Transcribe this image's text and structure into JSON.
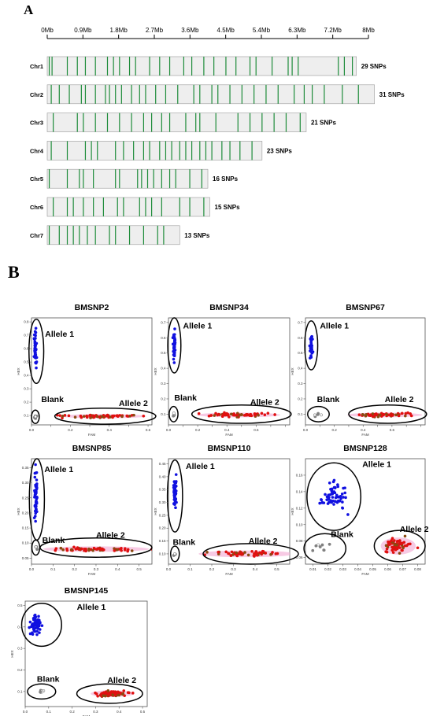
{
  "panel_a": {
    "label": "A",
    "axis_ticks": [
      "0Mb",
      "0.9Mb",
      "1.8Mb",
      "2.7Mb",
      "3.6Mb",
      "4.5Mb",
      "5.4Mb",
      "6.3Mb",
      "7.2Mb",
      "8Mb"
    ],
    "snp_color": "#1e8c3a",
    "bar_color": "#eeeeee"
  },
  "panel_b": {
    "label": "B",
    "colors": {
      "allele1": "#1010e0",
      "allele2": "#e01010",
      "het": "#8a4a10",
      "blank": "#808080",
      "halo": "#f4b4d8"
    }
  },
  "chart_data": [
    {
      "type": "bar",
      "title": "",
      "xlabel": "",
      "xlim_mb": [
        0,
        8
      ],
      "chromosomes": [
        {
          "name": "Chr1",
          "length_mb": 7.7,
          "snp_count_label": "29 SNPs",
          "snps_mb": [
            0.05,
            0.12,
            0.5,
            0.75,
            0.95,
            1.2,
            1.5,
            1.65,
            1.8,
            2.05,
            2.2,
            2.55,
            2.8,
            3.05,
            3.4,
            3.6,
            3.9,
            4.15,
            4.45,
            4.7,
            5.05,
            5.2,
            5.6,
            6.0,
            6.1,
            6.25,
            7.25,
            7.4,
            7.6
          ]
        },
        {
          "name": "Chr2",
          "length_mb": 8.15,
          "snp_count_label": "31 SNPs",
          "snps_mb": [
            0.1,
            0.3,
            0.55,
            0.85,
            0.95,
            1.2,
            1.45,
            1.55,
            1.7,
            1.85,
            2.1,
            2.3,
            2.45,
            2.7,
            2.95,
            3.25,
            3.65,
            3.8,
            4.1,
            4.25,
            4.55,
            4.85,
            5.15,
            5.45,
            5.75,
            6.15,
            6.4,
            6.6,
            6.9,
            7.35,
            7.75
          ]
        },
        {
          "name": "Chr3",
          "length_mb": 6.45,
          "snp_count_label": "21 SNPs",
          "snps_mb": [
            0.15,
            0.75,
            0.9,
            1.2,
            1.5,
            1.8,
            2.1,
            2.4,
            2.6,
            2.85,
            3.05,
            3.45,
            3.7,
            3.8,
            4.2,
            4.75,
            5.05,
            5.35,
            5.65,
            5.95,
            6.3
          ]
        },
        {
          "name": "Chr4",
          "length_mb": 5.35,
          "snp_count_label": "23 SNPs",
          "snps_mb": [
            0.1,
            0.5,
            0.95,
            1.1,
            1.25,
            1.7,
            1.9,
            2.15,
            2.4,
            2.55,
            2.8,
            2.95,
            3.1,
            3.3,
            3.45,
            3.6,
            3.8,
            3.95,
            4.1,
            4.35,
            4.55,
            4.8,
            5.1
          ]
        },
        {
          "name": "Chr5",
          "length_mb": 4.0,
          "snp_count_label": "16 SNPs",
          "snps_mb": [
            0.05,
            0.5,
            0.8,
            0.9,
            1.15,
            1.7,
            1.8,
            2.25,
            2.35,
            2.5,
            2.65,
            2.85,
            3.05,
            3.2,
            3.55,
            3.85
          ]
        },
        {
          "name": "Chr6",
          "length_mb": 4.05,
          "snp_count_label": "15 SNPs",
          "snps_mb": [
            0.15,
            0.5,
            0.65,
            0.9,
            1.15,
            1.4,
            1.75,
            1.9,
            2.3,
            2.45,
            2.6,
            2.85,
            3.3,
            3.55,
            3.9
          ]
        },
        {
          "name": "Chr7",
          "length_mb": 3.3,
          "snp_count_label": "13 SNPs",
          "snps_mb": [
            0.05,
            0.3,
            0.5,
            0.65,
            0.8,
            1.0,
            1.2,
            1.55,
            1.7,
            2.05,
            2.4,
            2.75,
            2.9
          ]
        }
      ]
    },
    {
      "type": "scatter",
      "title": "BMSNP2",
      "xlabel": "FAM",
      "ylabel": "HEX",
      "xlim": [
        0,
        0.62
      ],
      "ylim": [
        0.03,
        0.83
      ],
      "xticks": [
        0.0,
        0.1,
        0.2,
        0.3,
        0.4,
        0.5,
        0.6
      ],
      "xtick_labels": [
        "0.0",
        "",
        "0.2",
        "",
        "0.4",
        "",
        "0.6"
      ],
      "yticks": [
        0.1,
        0.2,
        0.3,
        0.4,
        0.5,
        0.6,
        0.7,
        0.8
      ],
      "ytick_labels": [
        "0.1",
        "0.2",
        "0.3",
        "0.4",
        "0.5",
        "0.6",
        "0.7",
        "0.8"
      ],
      "clusters": [
        {
          "label": "Allele 1",
          "kind": "allele1",
          "n": 40,
          "center": [
            0.02,
            0.6
          ],
          "spread": [
            0.006,
            0.14
          ]
        },
        {
          "label": "Blank",
          "kind": "blank",
          "n": 5,
          "center": [
            0.02,
            0.085
          ],
          "spread": [
            0.006,
            0.02
          ]
        },
        {
          "label": "Allele 2",
          "kind": "allele2",
          "n": 60,
          "center": [
            0.37,
            0.095
          ],
          "spread": [
            0.17,
            0.012
          ]
        }
      ],
      "ellipses": [
        {
          "cx": 0.025,
          "cy": 0.58,
          "rx": 0.038,
          "ry": 0.24
        },
        {
          "cx": 0.02,
          "cy": 0.09,
          "rx": 0.02,
          "ry": 0.05
        },
        {
          "cx": 0.38,
          "cy": 0.095,
          "rx": 0.26,
          "ry": 0.06
        }
      ],
      "labels": [
        {
          "text": "Allele 1",
          "x": 0.07,
          "y": 0.69
        },
        {
          "text": "Blank",
          "x": 0.05,
          "y": 0.2
        },
        {
          "text": "Allele 2",
          "x": 0.45,
          "y": 0.17
        }
      ]
    },
    {
      "type": "scatter",
      "title": "BMSNP34",
      "xlabel": "FAM",
      "ylabel": "HEX",
      "xlim": [
        0,
        0.83
      ],
      "ylim": [
        0.03,
        0.73
      ],
      "xticks": [
        0.0,
        0.1,
        0.2,
        0.3,
        0.4,
        0.5,
        0.6,
        0.7,
        0.8
      ],
      "xtick_labels": [
        "0.0",
        "",
        "0.2",
        "",
        "0.4",
        "",
        "0.6",
        "",
        ""
      ],
      "yticks": [
        0.1,
        0.2,
        0.3,
        0.4,
        0.5,
        0.6,
        0.7
      ],
      "ytick_labels": [
        "0.1",
        "0.2",
        "0.3",
        "0.4",
        "0.5",
        "0.6",
        "0.7"
      ],
      "clusters": [
        {
          "label": "Allele 1",
          "kind": "allele1",
          "n": 40,
          "center": [
            0.04,
            0.55
          ],
          "spread": [
            0.008,
            0.11
          ]
        },
        {
          "label": "Blank",
          "kind": "blank",
          "n": 5,
          "center": [
            0.035,
            0.1
          ],
          "spread": [
            0.008,
            0.018
          ]
        },
        {
          "label": "Allele 2",
          "kind": "allele2",
          "n": 60,
          "center": [
            0.48,
            0.095
          ],
          "spread": [
            0.22,
            0.012
          ]
        }
      ],
      "ellipses": [
        {
          "cx": 0.04,
          "cy": 0.55,
          "rx": 0.045,
          "ry": 0.18
        },
        {
          "cx": 0.035,
          "cy": 0.1,
          "rx": 0.03,
          "ry": 0.05
        },
        {
          "cx": 0.5,
          "cy": 0.1,
          "rx": 0.34,
          "ry": 0.06
        }
      ],
      "labels": [
        {
          "text": "Allele 1",
          "x": 0.1,
          "y": 0.66
        },
        {
          "text": "Blank",
          "x": 0.04,
          "y": 0.19
        },
        {
          "text": "Allele 2",
          "x": 0.56,
          "y": 0.16
        }
      ]
    },
    {
      "type": "scatter",
      "title": "BMSNP67",
      "xlabel": "FAM",
      "ylabel": "HEX",
      "xlim": [
        0,
        0.83
      ],
      "ylim": [
        0.03,
        0.73
      ],
      "xticks": [
        0.0,
        0.1,
        0.2,
        0.3,
        0.4,
        0.5,
        0.6,
        0.7,
        0.8
      ],
      "xtick_labels": [
        "0.0",
        "",
        "0.2",
        "",
        "0.4",
        "",
        "0.6",
        "",
        ""
      ],
      "yticks": [
        0.1,
        0.2,
        0.3,
        0.4,
        0.5,
        0.6,
        0.7
      ],
      "ytick_labels": [
        "0.1",
        "0.2",
        "0.3",
        "0.4",
        "0.5",
        "0.6",
        "0.7"
      ],
      "clusters": [
        {
          "label": "Allele 1",
          "kind": "allele1",
          "n": 35,
          "center": [
            0.04,
            0.55
          ],
          "spread": [
            0.01,
            0.08
          ]
        },
        {
          "label": "Blank",
          "kind": "blank",
          "n": 5,
          "center": [
            0.08,
            0.1
          ],
          "spread": [
            0.035,
            0.015
          ]
        },
        {
          "label": "Allele 2",
          "kind": "allele2",
          "n": 60,
          "center": [
            0.55,
            0.095
          ],
          "spread": [
            0.2,
            0.012
          ]
        }
      ],
      "ellipses": [
        {
          "cx": 0.04,
          "cy": 0.55,
          "rx": 0.045,
          "ry": 0.16
        },
        {
          "cx": 0.09,
          "cy": 0.1,
          "rx": 0.075,
          "ry": 0.05
        },
        {
          "cx": 0.57,
          "cy": 0.1,
          "rx": 0.27,
          "ry": 0.06
        }
      ],
      "labels": [
        {
          "text": "Allele 1",
          "x": 0.1,
          "y": 0.66
        },
        {
          "text": "Blank",
          "x": 0.08,
          "y": 0.18
        },
        {
          "text": "Allele 2",
          "x": 0.55,
          "y": 0.18
        }
      ]
    },
    {
      "type": "scatter",
      "title": "BMSNP85",
      "xlabel": "FAM",
      "ylabel": "HEX",
      "xlim": [
        0,
        0.56
      ],
      "ylim": [
        0.03,
        0.38
      ],
      "xticks": [
        0.0,
        0.1,
        0.2,
        0.3,
        0.4,
        0.5
      ],
      "xtick_labels": [
        "0.0",
        "0.1",
        "0.2",
        "0.3",
        "0.4",
        "0.5"
      ],
      "yticks": [
        0.05,
        0.1,
        0.15,
        0.2,
        0.25,
        0.3,
        0.35
      ],
      "ytick_labels": [
        "0.05",
        "0.10",
        "0.15",
        "0.20",
        "0.25",
        "0.30",
        "0.35"
      ],
      "clusters": [
        {
          "label": "Allele 1",
          "kind": "allele1",
          "n": 50,
          "center": [
            0.02,
            0.26
          ],
          "spread": [
            0.006,
            0.085
          ]
        },
        {
          "label": "Blank",
          "kind": "blank",
          "n": 4,
          "center": [
            0.02,
            0.085
          ],
          "spread": [
            0.006,
            0.008
          ]
        },
        {
          "label": "Allele 2",
          "kind": "allele2",
          "n": 60,
          "center": [
            0.3,
            0.08
          ],
          "spread": [
            0.19,
            0.007
          ]
        }
      ],
      "ellipses": [
        {
          "cx": 0.025,
          "cy": 0.245,
          "rx": 0.035,
          "ry": 0.135
        },
        {
          "cx": 0.02,
          "cy": 0.085,
          "rx": 0.018,
          "ry": 0.025
        },
        {
          "cx": 0.3,
          "cy": 0.085,
          "rx": 0.26,
          "ry": 0.032
        }
      ],
      "labels": [
        {
          "text": "Allele 1",
          "x": 0.06,
          "y": 0.335
        },
        {
          "text": "Blank",
          "x": 0.05,
          "y": 0.1
        },
        {
          "text": "Allele 2",
          "x": 0.3,
          "y": 0.118
        }
      ]
    },
    {
      "type": "scatter",
      "title": "BMSNP110",
      "xlabel": "FAM",
      "ylabel": "HEX",
      "xlim": [
        0,
        0.56
      ],
      "ylim": [
        0.06,
        0.47
      ],
      "xticks": [
        0.0,
        0.1,
        0.2,
        0.3,
        0.4,
        0.5
      ],
      "xtick_labels": [
        "0.0",
        "0.1",
        "0.2",
        "0.3",
        "0.4",
        "0.5"
      ],
      "yticks": [
        0.1,
        0.15,
        0.2,
        0.25,
        0.3,
        0.35,
        0.4,
        0.45
      ],
      "ytick_labels": [
        "0.10",
        "0.15",
        "0.20",
        "0.25",
        "0.30",
        "0.35",
        "0.40",
        "0.45"
      ],
      "clusters": [
        {
          "label": "Allele 1",
          "kind": "allele1",
          "n": 50,
          "center": [
            0.03,
            0.34
          ],
          "spread": [
            0.008,
            0.06
          ]
        },
        {
          "label": "Blank",
          "kind": "blank",
          "n": 5,
          "center": [
            0.03,
            0.1
          ],
          "spread": [
            0.006,
            0.008
          ]
        },
        {
          "label": "Allele 2",
          "kind": "allele2",
          "n": 60,
          "center": [
            0.36,
            0.1
          ],
          "spread": [
            0.17,
            0.01
          ]
        }
      ],
      "ellipses": [
        {
          "cx": 0.03,
          "cy": 0.325,
          "rx": 0.035,
          "ry": 0.14
        },
        {
          "cx": 0.03,
          "cy": 0.1,
          "rx": 0.02,
          "ry": 0.03
        },
        {
          "cx": 0.38,
          "cy": 0.1,
          "rx": 0.22,
          "ry": 0.04
        }
      ],
      "labels": [
        {
          "text": "Allele 1",
          "x": 0.08,
          "y": 0.43
        },
        {
          "text": "Blank",
          "x": 0.02,
          "y": 0.135
        },
        {
          "text": "Allele 2",
          "x": 0.37,
          "y": 0.14
        }
      ]
    },
    {
      "type": "scatter",
      "title": "BMSNP128",
      "xlabel": "FAM",
      "ylabel": "HEX",
      "xlim": [
        0.005,
        0.085
      ],
      "ylim": [
        0.052,
        0.18
      ],
      "xticks": [
        0.01,
        0.02,
        0.03,
        0.04,
        0.05,
        0.06,
        0.07,
        0.08
      ],
      "xtick_labels": [
        "0.01",
        "0.02",
        "0.03",
        "0.04",
        "0.05",
        "0.06",
        "0.07",
        "0.08"
      ],
      "yticks": [
        0.06,
        0.08,
        0.1,
        0.12,
        0.14,
        0.16
      ],
      "ytick_labels": [
        "0.06",
        "0.08",
        "0.10",
        "0.12",
        "0.14",
        "0.16"
      ],
      "clusters": [
        {
          "label": "Allele 1",
          "kind": "allele1",
          "n": 60,
          "center": [
            0.024,
            0.135
          ],
          "spread": [
            0.008,
            0.015
          ]
        },
        {
          "label": "Blank",
          "kind": "blank",
          "n": 8,
          "center": [
            0.016,
            0.072
          ],
          "spread": [
            0.006,
            0.007
          ]
        },
        {
          "label": "Allele 2",
          "kind": "allele2",
          "n": 60,
          "center": [
            0.067,
            0.074
          ],
          "spread": [
            0.009,
            0.008
          ]
        }
      ],
      "ellipses": [
        {
          "cx": 0.024,
          "cy": 0.134,
          "rx": 0.018,
          "ry": 0.041
        },
        {
          "cx": 0.018,
          "cy": 0.071,
          "rx": 0.014,
          "ry": 0.018
        },
        {
          "cx": 0.068,
          "cy": 0.074,
          "rx": 0.017,
          "ry": 0.019
        }
      ],
      "labels": [
        {
          "text": "Allele 1",
          "x": 0.043,
          "y": 0.17
        },
        {
          "text": "Blank",
          "x": 0.022,
          "y": 0.085
        },
        {
          "text": "Allele 2",
          "x": 0.068,
          "y": 0.091
        }
      ]
    },
    {
      "type": "scatter",
      "title": "BMSNP145",
      "xlabel": "FAM",
      "ylabel": "HEX",
      "xlim": [
        0,
        0.52
      ],
      "ylim": [
        0.03,
        0.52
      ],
      "xticks": [
        0.0,
        0.1,
        0.2,
        0.3,
        0.4,
        0.5
      ],
      "xtick_labels": [
        "0.0",
        "0.1",
        "0.2",
        "0.3",
        "0.4",
        "0.5"
      ],
      "yticks": [
        0.1,
        0.2,
        0.3,
        0.4,
        0.5
      ],
      "ytick_labels": [
        "0.1",
        "0.2",
        "0.3",
        "0.4",
        "0.5"
      ],
      "clusters": [
        {
          "label": "Allele 1",
          "kind": "allele1",
          "n": 55,
          "center": [
            0.045,
            0.41
          ],
          "spread": [
            0.025,
            0.045
          ]
        },
        {
          "label": "Blank",
          "kind": "blank",
          "n": 8,
          "center": [
            0.07,
            0.1
          ],
          "spread": [
            0.02,
            0.008
          ]
        },
        {
          "label": "Allele 2",
          "kind": "allele2",
          "n": 80,
          "center": [
            0.37,
            0.09
          ],
          "spread": [
            0.07,
            0.012
          ]
        }
      ],
      "ellipses": [
        {
          "cx": 0.07,
          "cy": 0.41,
          "rx": 0.085,
          "ry": 0.1
        },
        {
          "cx": 0.07,
          "cy": 0.1,
          "rx": 0.06,
          "ry": 0.035
        },
        {
          "cx": 0.36,
          "cy": 0.09,
          "rx": 0.14,
          "ry": 0.045
        }
      ],
      "labels": [
        {
          "text": "Allele 1",
          "x": 0.22,
          "y": 0.48
        },
        {
          "text": "Blank",
          "x": 0.05,
          "y": 0.145
        },
        {
          "text": "Allele 2",
          "x": 0.35,
          "y": 0.14
        }
      ]
    }
  ]
}
